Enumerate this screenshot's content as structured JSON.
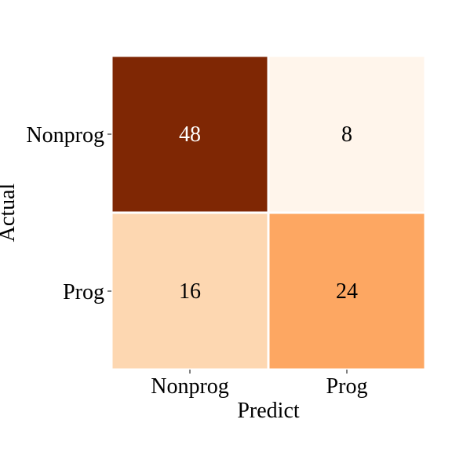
{
  "chart_data": {
    "type": "heatmap",
    "title": "",
    "xlabel": "Predict",
    "ylabel": "Actual",
    "x_categories": [
      "Nonprog",
      "Prog"
    ],
    "y_categories": [
      "Nonprog",
      "Prog"
    ],
    "values": [
      [
        48,
        8
      ],
      [
        16,
        24
      ]
    ],
    "colormap": "Oranges",
    "colorbar": false,
    "cell_colors": [
      [
        "#7f2704",
        "#fff5eb"
      ],
      [
        "#fdd7b1",
        "#fda762"
      ]
    ],
    "text_colors": [
      [
        "#ffffff",
        "#000000"
      ],
      [
        "#000000",
        "#000000"
      ]
    ],
    "cell_border_color": "#ffffff"
  }
}
